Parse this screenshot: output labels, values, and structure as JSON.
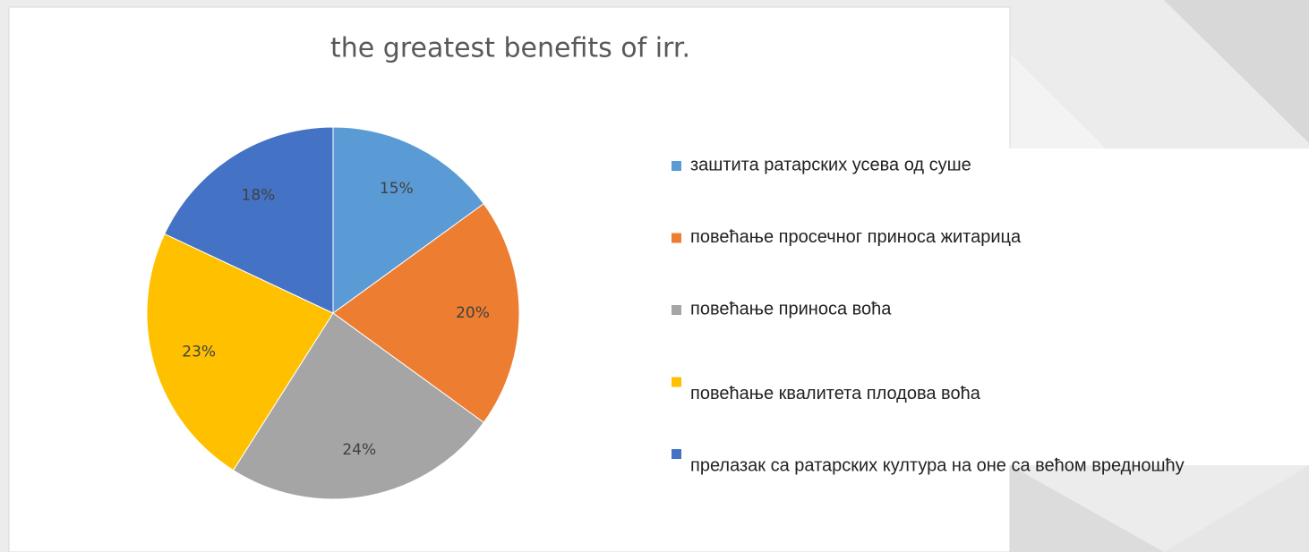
{
  "chart_data": {
    "type": "pie",
    "title": "the greatest benefits of irr.",
    "categories": [
      "заштита ратарских усева од суше",
      "повећање просечног приноса житарица",
      "повећање приноса воћа",
      "повећање квалитета плодова воћа",
      "прелазак са ратарских култура на оне са већом вредношћу"
    ],
    "values": [
      15,
      20,
      24,
      23,
      18
    ],
    "value_labels": [
      "15%",
      "20%",
      "24%",
      "23%",
      "18%"
    ],
    "colors": [
      "#5b9bd5",
      "#ed7d31",
      "#a5a5a5",
      "#ffc000",
      "#4472c4"
    ],
    "legend": "right"
  }
}
